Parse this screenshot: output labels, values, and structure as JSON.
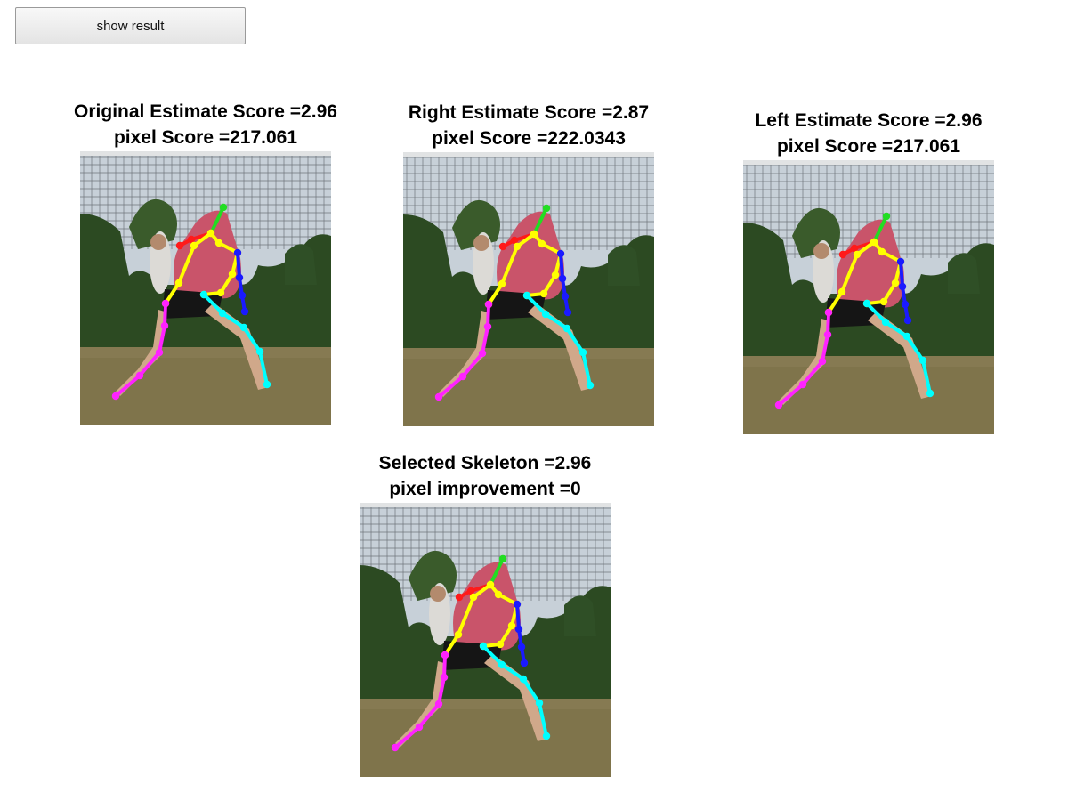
{
  "controls": {
    "show_result_label": "show result"
  },
  "panels": [
    {
      "id": "original",
      "title_line1": "Original Estimate Score =2.96",
      "title_line2": "pixel Score =217.061"
    },
    {
      "id": "right",
      "title_line1": "Right Estimate Score =2.87",
      "title_line2": "pixel Score =222.0343"
    },
    {
      "id": "left",
      "title_line1": "Left Estimate Score =2.96",
      "title_line2": "pixel Score =217.061"
    },
    {
      "id": "selected",
      "title_line1": "Selected Skeleton =2.96",
      "title_line2": "pixel improvement =0"
    }
  ],
  "skeleton_colors": {
    "head": "#22dd22",
    "right_arm": "#ff1a1a",
    "left_arm": "#1a1aff",
    "torso": "#ffff00",
    "right_leg": "#ff22ff",
    "left_leg": "#00ffff"
  }
}
